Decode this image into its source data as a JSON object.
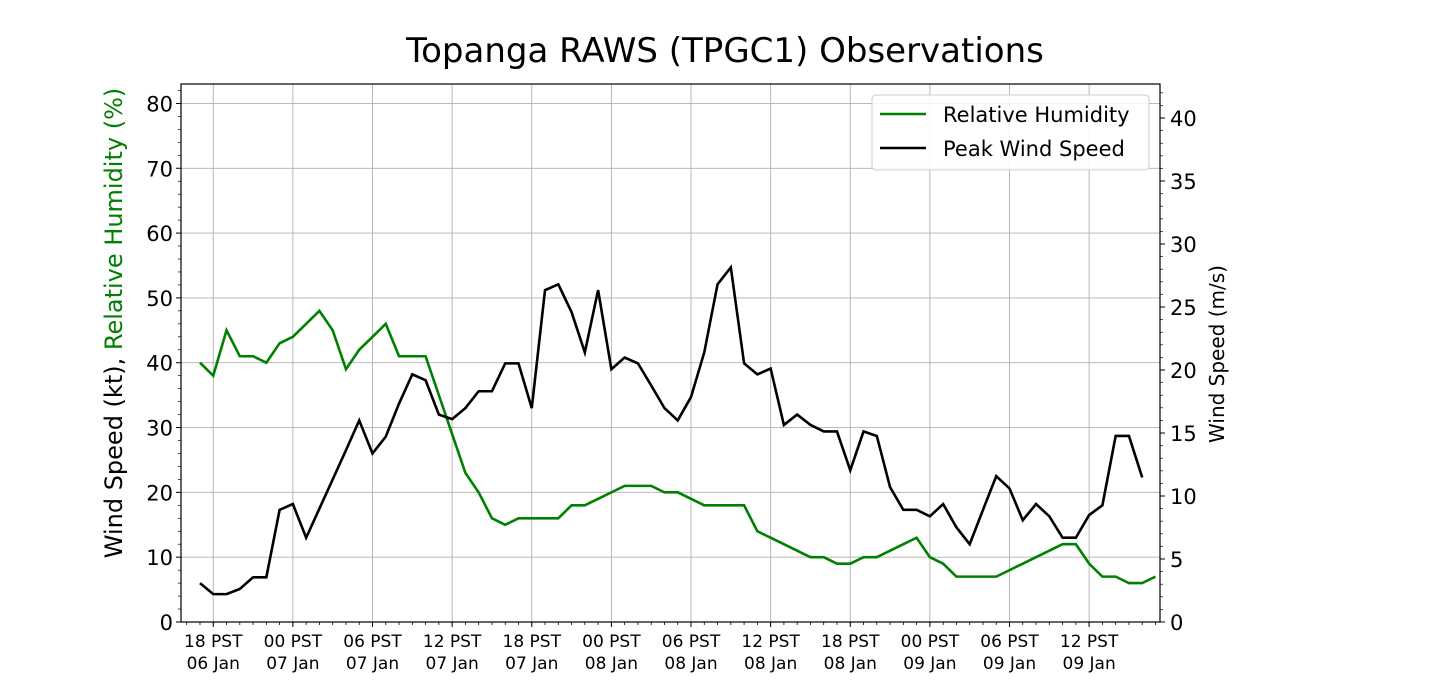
{
  "chart_data": {
    "type": "line",
    "title": "Topanga RAWS (TPGC1) Observations",
    "ylabel_left_parts": [
      "Wind Speed (kt), ",
      "Relative Humidity (%)"
    ],
    "ylabel_right": "Wind Speed (m/s)",
    "xlabel": "",
    "ylim_left": [
      0,
      83
    ],
    "ylim_right": [
      0,
      42.7
    ],
    "xlim_hours": [
      -1.43,
      72.34
    ],
    "grid": true,
    "legend_position": "top-right",
    "yticks_left": [
      0,
      10,
      20,
      30,
      40,
      50,
      60,
      70,
      80
    ],
    "yticks_right": [
      0,
      5,
      10,
      15,
      20,
      25,
      30,
      35,
      40
    ],
    "x_start_label": "17 PST 06 Jan",
    "x_step_hours": 1,
    "xticks": [
      {
        "hour": 1,
        "line1": "18 PST",
        "line2": "06 Jan"
      },
      {
        "hour": 7,
        "line1": "00 PST",
        "line2": "07 Jan"
      },
      {
        "hour": 13,
        "line1": "06 PST",
        "line2": "07 Jan"
      },
      {
        "hour": 19,
        "line1": "12 PST",
        "line2": "07 Jan"
      },
      {
        "hour": 25,
        "line1": "18 PST",
        "line2": "07 Jan"
      },
      {
        "hour": 31,
        "line1": "00 PST",
        "line2": "08 Jan"
      },
      {
        "hour": 37,
        "line1": "06 PST",
        "line2": "08 Jan"
      },
      {
        "hour": 43,
        "line1": "12 PST",
        "line2": "08 Jan"
      },
      {
        "hour": 49,
        "line1": "18 PST",
        "line2": "08 Jan"
      },
      {
        "hour": 55,
        "line1": "00 PST",
        "line2": "09 Jan"
      },
      {
        "hour": 61,
        "line1": "06 PST",
        "line2": "09 Jan"
      },
      {
        "hour": 67,
        "line1": "12 PST",
        "line2": "09 Jan"
      }
    ],
    "series": [
      {
        "name": "Relative Humidity",
        "color": "#008000",
        "axis": "left",
        "values": [
          40,
          38,
          45,
          41,
          41,
          40,
          43,
          44,
          46,
          48,
          45,
          39,
          42,
          44,
          46,
          41,
          41,
          41,
          35,
          29,
          23,
          20,
          16,
          15,
          16,
          16,
          16,
          16,
          18,
          18,
          19,
          20,
          21,
          21,
          21,
          20,
          20,
          19,
          18,
          18,
          18,
          18,
          14,
          13,
          12,
          11,
          10,
          10,
          9,
          9,
          10,
          10,
          11,
          12,
          13,
          10,
          9,
          7,
          7,
          7,
          7,
          8,
          9,
          10,
          11,
          12,
          12,
          9,
          7,
          7,
          6,
          6,
          7
        ]
      },
      {
        "name": "Peak Wind Speed",
        "color": "#000000",
        "axis": "left",
        "units": "kt",
        "values": [
          6.0,
          4.3,
          4.3,
          5.1,
          6.9,
          6.9,
          17.3,
          18.2,
          13.0,
          17.5,
          22.0,
          26.5,
          31.1,
          26.0,
          28.6,
          33.7,
          38.2,
          37.3,
          32.0,
          31.3,
          33.0,
          35.6,
          35.6,
          39.9,
          39.9,
          33.0,
          51.2,
          52.1,
          47.8,
          41.6,
          51.2,
          39.0,
          40.8,
          39.9,
          36.5,
          33.0,
          31.1,
          34.7,
          41.6,
          52.1,
          54.7,
          39.9,
          38.2,
          39.1,
          30.4,
          32.0,
          30.4,
          29.4,
          29.4,
          23.4,
          29.4,
          28.7,
          20.8,
          17.3,
          17.3,
          16.3,
          18.2,
          14.6,
          12.0,
          17.3,
          22.5,
          20.6,
          15.7,
          18.2,
          16.3,
          13.0,
          13.0,
          16.5,
          18.0,
          28.7,
          28.7,
          22.3
        ]
      }
    ]
  }
}
